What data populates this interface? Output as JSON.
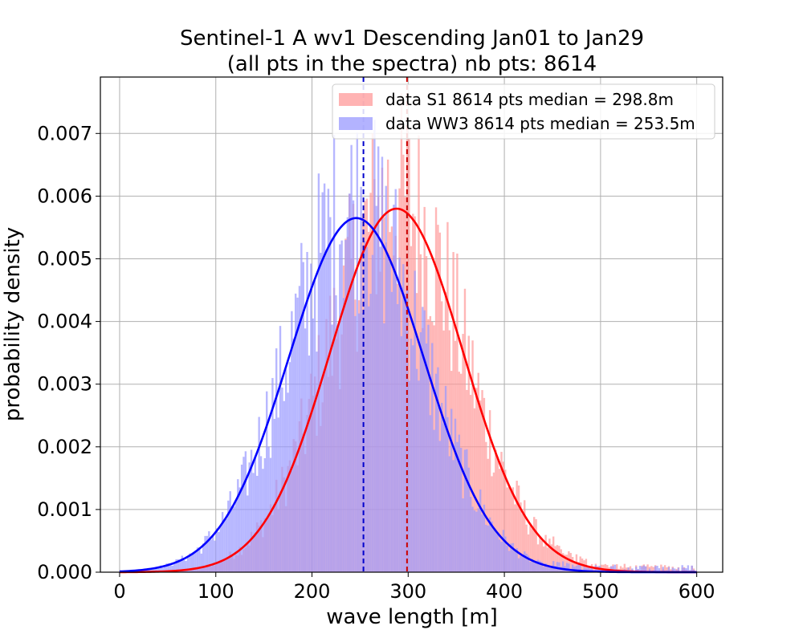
{
  "chart_data": {
    "type": "bar",
    "title_lines": [
      "Sentinel-1 A wv1 Descending Jan01 to Jan29",
      "(all pts in the spectra) nb pts: 8614"
    ],
    "xlabel": "wave length [m]",
    "ylabel": "probability density",
    "xlim": [
      -20,
      627
    ],
    "ylim": [
      0,
      0.0079
    ],
    "xticks": [
      0,
      100,
      200,
      300,
      400,
      500,
      600
    ],
    "yticks": [
      0,
      0.001,
      0.002,
      0.003,
      0.004,
      0.005,
      0.006,
      0.007
    ],
    "xtick_labels": [
      "0",
      "100",
      "200",
      "300",
      "400",
      "500",
      "600"
    ],
    "ytick_labels": [
      "0.000",
      "0.001",
      "0.002",
      "0.003",
      "0.004",
      "0.005",
      "0.006",
      "0.007"
    ],
    "grid": true,
    "legend_position": "top-right",
    "series": [
      {
        "name": "data S1 8614 pts median = 298.8m",
        "kind": "histogram",
        "color": "#ff9999",
        "median": 298.8,
        "fit": {
          "type": "normal",
          "mean": 288,
          "std": 69,
          "peak": 0.0058,
          "color": "#ff0000"
        },
        "median_line_color": "#cc0000"
      },
      {
        "name": "data WW3 8614 pts median = 253.5m",
        "kind": "histogram",
        "color": "#9999ff",
        "median": 253.5,
        "fit": {
          "type": "normal",
          "mean": 246,
          "std": 70,
          "peak": 0.00565,
          "color": "#0000ff"
        },
        "median_line_color": "#0000cc"
      }
    ],
    "bins": {
      "start": 0,
      "end": 600,
      "width": 2
    }
  }
}
